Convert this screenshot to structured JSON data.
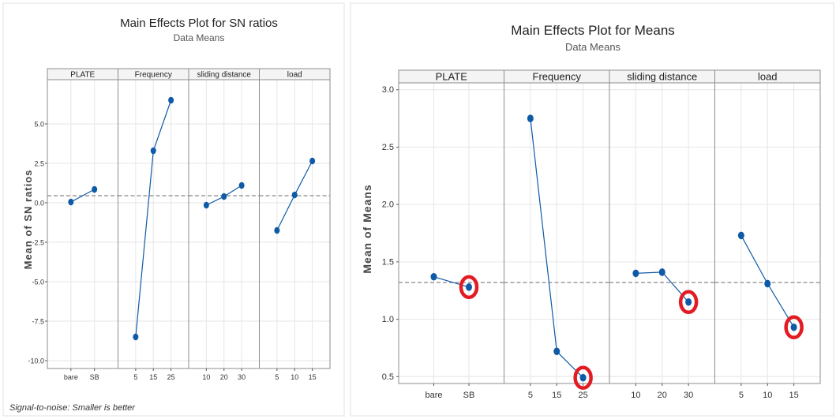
{
  "chart_data": [
    {
      "type": "line",
      "title": "Main Effects Plot for SN ratios",
      "subtitle": "Data Means",
      "ylabel": "Mean of SN ratios",
      "footnote": "Signal-to-noise: Smaller is better",
      "ylim": [
        -10.5,
        7.8
      ],
      "yticks": [
        -10.0,
        -7.5,
        -5.0,
        -2.5,
        0.0,
        2.5,
        5.0
      ],
      "ytick_labels": [
        "-10.0",
        "-7.5",
        "-5.0",
        "-2.5",
        "0.0",
        "2.5",
        "5.0"
      ],
      "reference_line": 0.45,
      "grid": true,
      "panels": [
        {
          "label": "PLATE",
          "categories": [
            "bare",
            "SB"
          ],
          "values": [
            0.05,
            0.85
          ]
        },
        {
          "label": "Frequency",
          "categories": [
            "5",
            "15",
            "25"
          ],
          "values": [
            -8.5,
            3.3,
            6.5
          ]
        },
        {
          "label": "sliding distance",
          "categories": [
            "10",
            "20",
            "30"
          ],
          "values": [
            -0.15,
            0.4,
            1.1
          ]
        },
        {
          "label": "load",
          "categories": [
            "5",
            "10",
            "15"
          ],
          "values": [
            -1.75,
            0.5,
            2.65
          ]
        }
      ]
    },
    {
      "type": "line",
      "title": "Main Effects Plot for Means",
      "subtitle": "Data Means",
      "ylabel": "Mean of Means",
      "ylim": [
        0.44,
        3.06
      ],
      "yticks": [
        0.5,
        1.0,
        1.5,
        2.0,
        2.5,
        3.0
      ],
      "ytick_labels": [
        "0.5",
        "1.0",
        "1.5",
        "2.0",
        "2.5",
        "3.0"
      ],
      "reference_line": 1.32,
      "grid": true,
      "highlight_color": "#e31b23",
      "panels": [
        {
          "label": "PLATE",
          "categories": [
            "bare",
            "SB"
          ],
          "values": [
            1.37,
            1.28
          ],
          "highlight": 1
        },
        {
          "label": "Frequency",
          "categories": [
            "5",
            "15",
            "25"
          ],
          "values": [
            2.75,
            0.72,
            0.49
          ],
          "highlight": 2
        },
        {
          "label": "sliding distance",
          "categories": [
            "10",
            "20",
            "30"
          ],
          "values": [
            1.4,
            1.41,
            1.15
          ],
          "highlight": 2
        },
        {
          "label": "load",
          "categories": [
            "5",
            "10",
            "15"
          ],
          "values": [
            1.73,
            1.31,
            0.93
          ],
          "highlight": 2
        }
      ]
    }
  ],
  "colors": {
    "series": "#0e5aa7",
    "marker": "#0e5aa7",
    "grid": "#e6e6e6",
    "reference": "#888888",
    "frame": "#8c8c8c"
  }
}
